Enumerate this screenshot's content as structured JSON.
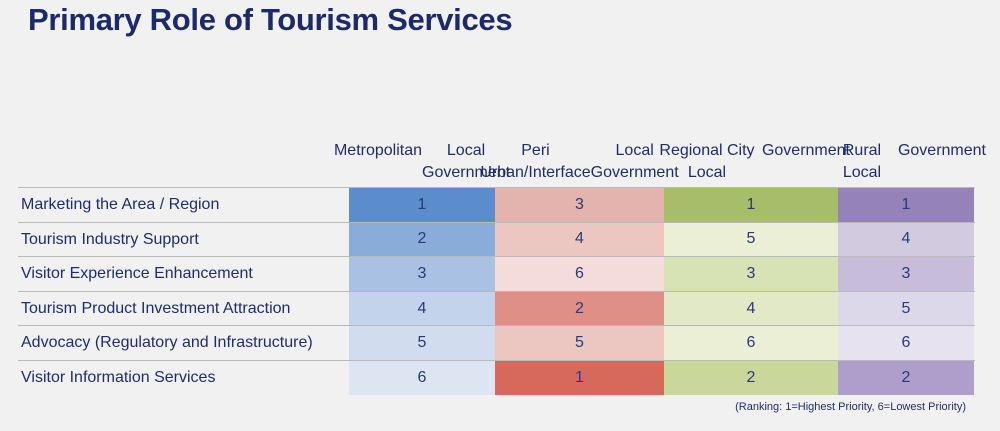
{
  "title": "Primary Role of Tourism Services",
  "note": "(Ranking: 1=Highest Priority, 6=Lowest Priority)",
  "chart_data": {
    "type": "table",
    "title": "Primary Role of Tourism Services",
    "columns": [
      {
        "line1": "Metropolitan",
        "line2": "Local Government"
      },
      {
        "line1": "Peri Urban/Interface",
        "line2": "Local Government"
      },
      {
        "line1": "Regional City Local",
        "line2": "Government"
      },
      {
        "line1": "Rural Local",
        "line2": "Government"
      }
    ],
    "rows": [
      {
        "label": "Marketing the Area / Region",
        "values": [
          1,
          3,
          1,
          1
        ]
      },
      {
        "label": "Tourism Industry Support",
        "values": [
          2,
          4,
          5,
          4
        ]
      },
      {
        "label": "Visitor Experience Enhancement",
        "values": [
          3,
          6,
          3,
          3
        ]
      },
      {
        "label": "Tourism Product Investment Attraction",
        "values": [
          4,
          2,
          4,
          5
        ]
      },
      {
        "label": "Advocacy (Regulatory and Infrastructure)",
        "values": [
          5,
          5,
          6,
          6
        ]
      },
      {
        "label": "Visitor Information Services",
        "values": [
          6,
          1,
          2,
          2
        ]
      }
    ],
    "column_colors": [
      [
        "#5b8ccb",
        "#8aacd9",
        "#a9c2e3",
        "#c3d3ec",
        "#d1ddef",
        "#dde5f2"
      ],
      [
        "#e3b4ae",
        "#ecc7c2",
        "#f3dcd9",
        "#df9086",
        "#ecc7c2",
        "#d7695c"
      ],
      [
        "#a6be6a",
        "#ebefd6",
        "#d8e3b5",
        "#e2e9c6",
        "#ebefd6",
        "#c9d79b"
      ],
      [
        "#9482b8",
        "#d2cbe0",
        "#c7bddb",
        "#ddd8e9",
        "#e6e2ef",
        "#ae9ecb"
      ]
    ],
    "ranking": "1=Highest Priority, 6=Lowest Priority"
  }
}
